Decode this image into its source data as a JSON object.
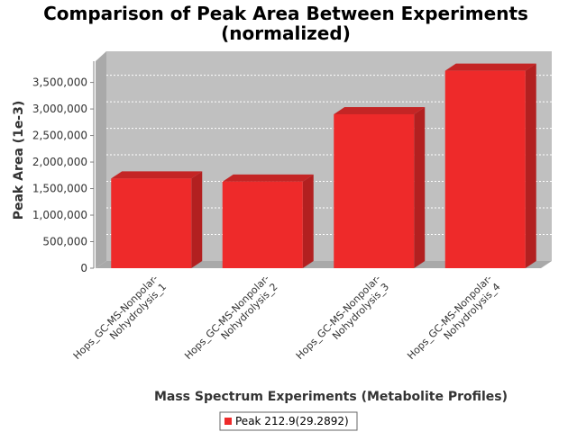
{
  "chart_data": {
    "type": "bar",
    "title_lines": [
      "Comparison of Peak Area Between Experiments",
      "(normalized)"
    ],
    "xlabel": "Mass Spectrum Experiments (Metabolite Profiles)",
    "ylabel": "Peak Area (1e-3)",
    "categories": [
      [
        "Hops_GC-MS-Nonpolar-",
        "Nohydrolysis_1"
      ],
      [
        "Hops_GC-MS-Nonpolar-",
        "Nohydrolysis_2"
      ],
      [
        "Hops_GC-MS-Nonpolar-",
        "Nohydrolysis_3"
      ],
      [
        "Hops_GC-MS-Nonpolar-",
        "Nohydrolysis_4"
      ]
    ],
    "series": [
      {
        "name": "Peak 212.9(29.2892)",
        "values": [
          1690000,
          1630000,
          2900000,
          3720000
        ],
        "color": "#ee2a2a"
      }
    ],
    "ylim": [
      0,
      3900000
    ],
    "yticks": [
      0,
      500000,
      1000000,
      1500000,
      2000000,
      2500000,
      3000000,
      3500000
    ],
    "ytick_labels": [
      "0",
      "500,000",
      "1,000,000",
      "1,500,000",
      "2,000,000",
      "2,500,000",
      "3,000,000",
      "3,500,000"
    ],
    "grid": true,
    "plot_background": "#c0c0c0",
    "legend_position": "bottom"
  }
}
